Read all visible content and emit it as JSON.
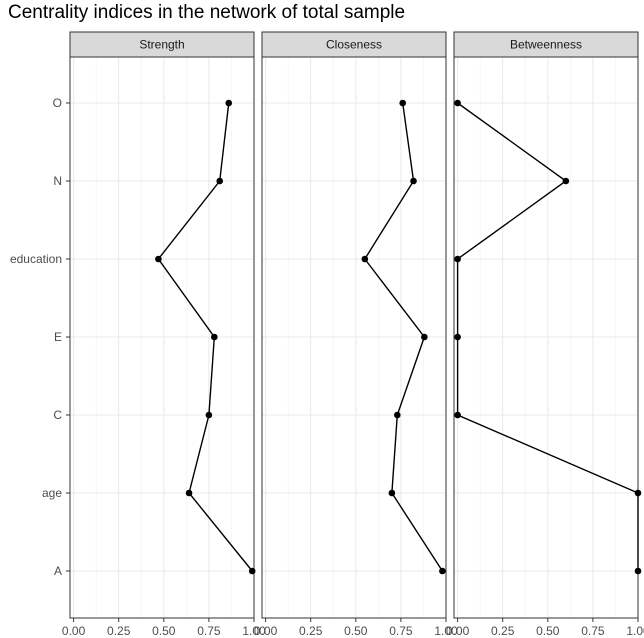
{
  "chart_data": {
    "type": "line",
    "title": "Centrality indices in the network of total sample",
    "xlabel": "",
    "ylabel": "",
    "categories": [
      "A",
      "age",
      "C",
      "E",
      "education",
      "N",
      "O"
    ],
    "xlim": [
      -0.02,
      1.0
    ],
    "x_ticks": [
      "0.00",
      "0.25",
      "0.50",
      "0.75",
      "1.00"
    ],
    "grid": true,
    "panels": [
      {
        "name": "Strength",
        "values": [
          0.99,
          0.64,
          0.75,
          0.78,
          0.47,
          0.81,
          0.86
        ]
      },
      {
        "name": "Closeness",
        "values": [
          0.98,
          0.7,
          0.73,
          0.88,
          0.55,
          0.82,
          0.76
        ]
      },
      {
        "name": "Betweenness",
        "values": [
          1.0,
          1.0,
          0.0,
          0.0,
          0.0,
          0.6,
          0.0
        ]
      }
    ]
  }
}
